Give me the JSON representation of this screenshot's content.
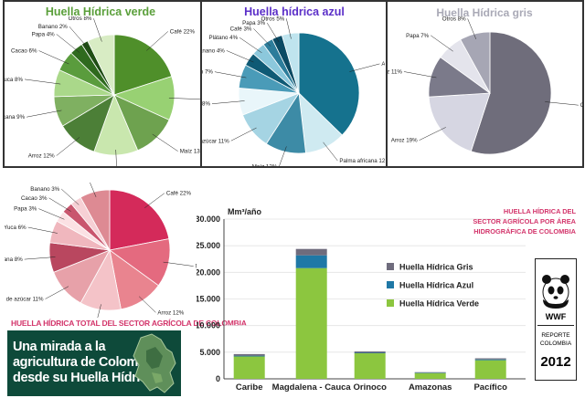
{
  "panels": {
    "verde": {
      "title": "Huella Hídrica verde",
      "color": "#5a9f3a"
    },
    "azul": {
      "title": "Huella hídrica azul",
      "color": "#5b2fc8"
    },
    "gris": {
      "title": "Huella Hídrica gris",
      "color": "#a9a9b6"
    }
  },
  "total_title": "HUELLA HÍDRICA TOTAL  DEL SECTOR AGRÍCOLA DE COLOMBIA",
  "banner": {
    "line1": "Una mirada a la",
    "line2": "agricultura de Colombia",
    "line3": "desde su Huella Hídrica"
  },
  "rhs_title": {
    "line1": "HUELLA HÍDRICA DEL",
    "line2": "SECTOR AGRÍCOLA POR ÁREA",
    "line3": "HIDROGRÁFICA DE COLOMBIA"
  },
  "wwf": {
    "brand": "WWF",
    "line1": "REPORTE",
    "line2": "COLOMBIA",
    "year": "2012"
  },
  "icons": {
    "panda": "panda-logo-icon",
    "map": "colombia-map-icon"
  },
  "colors": {
    "accent_pink": "#d3356b",
    "gris_bar": "#6f6c7d",
    "azul_bar": "#1f78a6",
    "verde_bar": "#8cc63f"
  },
  "chart_data": [
    {
      "type": "pie",
      "title": "Huella Hídrica verde",
      "slices": [
        {
          "label": "Café 22%",
          "value": 22,
          "color": "#4f8f2a"
        },
        {
          "label": "Plátano 13%",
          "value": 13,
          "color": "#98d173"
        },
        {
          "label": "Maíz 13%",
          "value": 13,
          "color": "#6ea24f"
        },
        {
          "label": "Caña de azúcar 13%",
          "value": 13,
          "color": "#c9e7ae"
        },
        {
          "label": "Arroz 12%",
          "value": 12,
          "color": "#4c7f37"
        },
        {
          "label": "Palma africana 9%",
          "value": 9,
          "color": "#7fb061"
        },
        {
          "label": "Yuca 8%",
          "value": 8,
          "color": "#aad88a"
        },
        {
          "label": "Cacao 6%",
          "value": 6,
          "color": "#5a9c3d"
        },
        {
          "label": "Papa 4%",
          "value": 4,
          "color": "#2f6a1e"
        },
        {
          "label": "Banano 2%",
          "value": 2,
          "color": "#1f4e14"
        },
        {
          "label": "Otros 8%",
          "value": 8,
          "color": "#d8ecc4"
        }
      ]
    },
    {
      "type": "pie",
      "title": "Huella hídrica azul",
      "slices": [
        {
          "label": "Arroz 41%",
          "value": 41,
          "color": "#15728e"
        },
        {
          "label": "Palma africana 12%",
          "value": 12,
          "color": "#cfeaf1"
        },
        {
          "label": "Maíz 12%",
          "value": 12,
          "color": "#3d8ba6"
        },
        {
          "label": "Caña de azúcar 11%",
          "value": 11,
          "color": "#a5d4e3"
        },
        {
          "label": "Yuca 8%",
          "value": 8,
          "color": "#e9f6fa"
        },
        {
          "label": "Algodón 7%",
          "value": 7,
          "color": "#4a9bb8"
        },
        {
          "label": "Banano 4%",
          "value": 4,
          "color": "#0f5a75"
        },
        {
          "label": "Plátano 4%",
          "value": 4,
          "color": "#8cc8dc"
        },
        {
          "label": "Café 3%",
          "value": 3,
          "color": "#2d7d9b"
        },
        {
          "label": "Papa 3%",
          "value": 3,
          "color": "#0b4a63"
        },
        {
          "label": "Otros 5%",
          "value": 5,
          "color": "#bfe4ee"
        }
      ]
    },
    {
      "type": "pie",
      "title": "Huella Hídrica gris",
      "slices": [
        {
          "label": "Café 55%",
          "value": 55,
          "color": "#6f6d7b"
        },
        {
          "label": "Arroz 19%",
          "value": 19,
          "color": "#d6d6e2"
        },
        {
          "label": "Maíz 11%",
          "value": 11,
          "color": "#7b7a8a"
        },
        {
          "label": "Papa 7%",
          "value": 7,
          "color": "#e4e4ec"
        },
        {
          "label": "Otros 8%",
          "value": 8,
          "color": "#a6a6b4"
        }
      ]
    },
    {
      "type": "pie",
      "title": "HUELLA HÍDRICA TOTAL  DEL SECTOR AGRÍCOLA DE COLOMBIA",
      "slices": [
        {
          "label": "Café 22%",
          "value": 22,
          "color": "#d42a5a"
        },
        {
          "label": "Maíz 13%",
          "value": 13,
          "color": "#e46a7f"
        },
        {
          "label": "Arroz 12%",
          "value": 12,
          "color": "#e9848f"
        },
        {
          "label": "Plátano 11%",
          "value": 11,
          "color": "#f4c3c8"
        },
        {
          "label": "Caña de azúcar 11%",
          "value": 11,
          "color": "#e7a1a9"
        },
        {
          "label": "Palma africana 8%",
          "value": 8,
          "color": "#b9475f"
        },
        {
          "label": "Yuca 6%",
          "value": 6,
          "color": "#f0b7be"
        },
        {
          "label": "Papa 3%",
          "value": 3,
          "color": "#fbe1e4"
        },
        {
          "label": "Cacao 3%",
          "value": 3,
          "color": "#c9566e"
        },
        {
          "label": "Banano 3%",
          "value": 3,
          "color": "#f6d0d5"
        },
        {
          "label": "Otros 8%",
          "value": 8,
          "color": "#dd8a93"
        }
      ]
    },
    {
      "type": "bar",
      "stacked": true,
      "ylabel": "Mm³/año",
      "categories": [
        "Caribe",
        "Magdalena - Cauca",
        "Orinoco",
        "Amazonas",
        "Pacífico"
      ],
      "ylim": [
        0,
        30000
      ],
      "yticks": [
        "0",
        "5.000",
        "10.000",
        "15.000",
        "20.000",
        "25.000",
        "30.000"
      ],
      "legend_position": "middle",
      "series": [
        {
          "name": "Huella Hídrica Verde",
          "color": "#8cc63f",
          "values": [
            4200,
            20800,
            4800,
            1100,
            3500
          ]
        },
        {
          "name": "Huella Hídrica Azul",
          "color": "#1f78a6",
          "values": [
            150,
            2400,
            100,
            50,
            150
          ]
        },
        {
          "name": "Huella Hídrica Gris",
          "color": "#6f6c7d",
          "values": [
            300,
            1200,
            250,
            100,
            200
          ]
        }
      ],
      "legend_order": [
        "Huella Hídrica Gris",
        "Huella Hídrica Azul",
        "Huella Hídrica Verde"
      ]
    }
  ]
}
